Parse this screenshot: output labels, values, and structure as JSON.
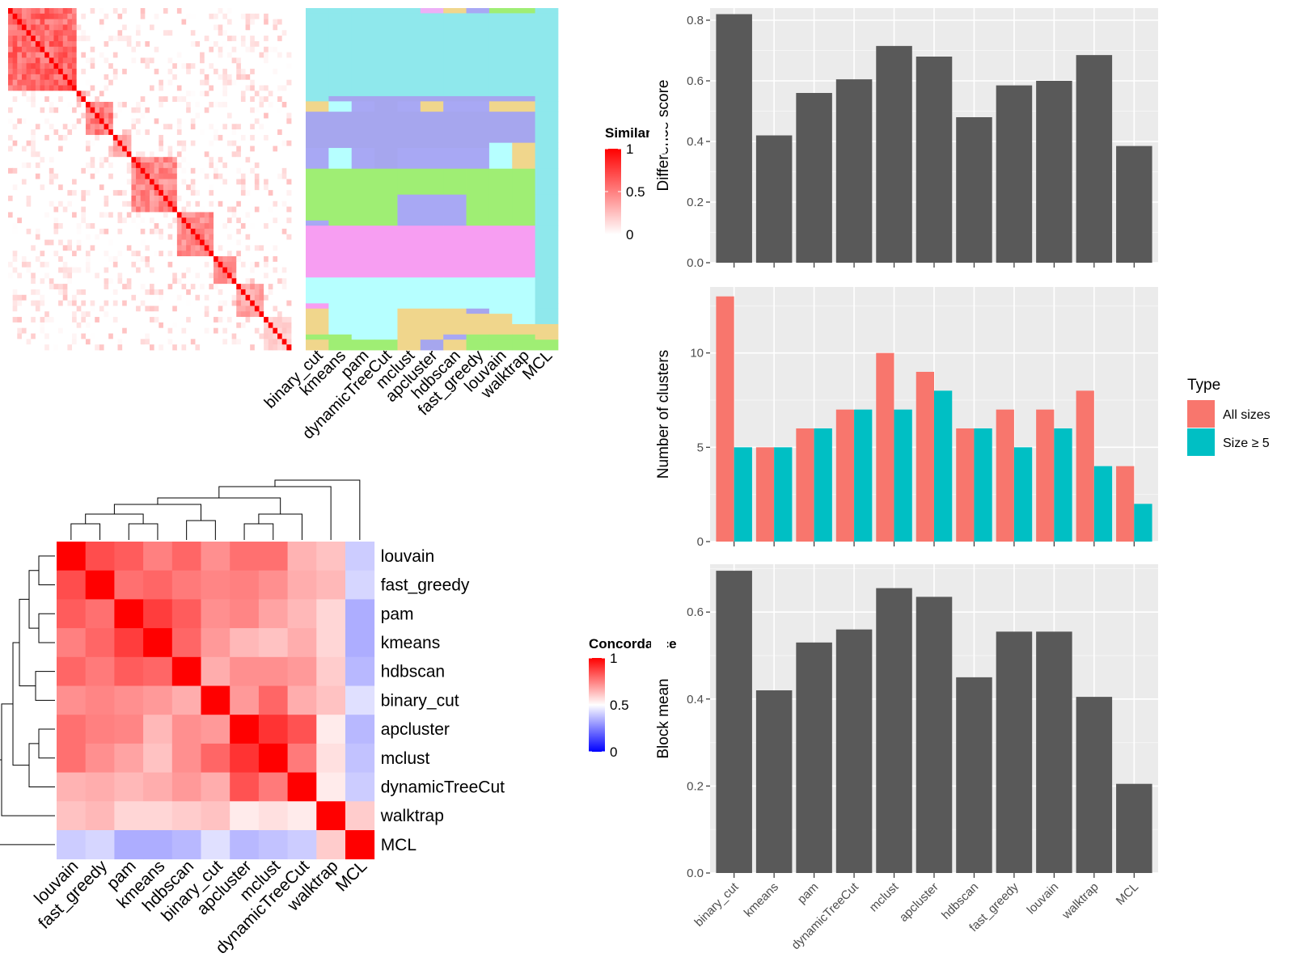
{
  "chart_data": [
    {
      "id": "similarity-heatmap",
      "type": "heatmap",
      "legend_title": "Similarity",
      "legend_ticks": [
        {
          "value": 1,
          "label": "1"
        },
        {
          "value": 0.5,
          "label": "0.5"
        },
        {
          "value": 0,
          "label": "0"
        }
      ],
      "scale_colors": [
        "#ffffff",
        "#ff0000"
      ],
      "n_terms": 62,
      "blocks": [
        {
          "start": 0,
          "end": 15,
          "within": 0.75
        },
        {
          "start": 15,
          "end": 17,
          "within": 0.6
        },
        {
          "start": 17,
          "end": 23,
          "within": 0.65
        },
        {
          "start": 23,
          "end": 27,
          "within": 0.55
        },
        {
          "start": 27,
          "end": 37,
          "within": 0.6
        },
        {
          "start": 37,
          "end": 45,
          "within": 0.6
        },
        {
          "start": 45,
          "end": 50,
          "within": 0.55
        },
        {
          "start": 50,
          "end": 56,
          "within": 0.45
        },
        {
          "start": 56,
          "end": 62,
          "within": 0.25
        }
      ]
    },
    {
      "id": "cluster-membership",
      "type": "heatmap",
      "methods": [
        "binary_cut",
        "kmeans",
        "pam",
        "dynamicTreeCut",
        "mclust",
        "apcluster",
        "hdbscan",
        "fast_greedy",
        "louvain",
        "walktrap",
        "MCL"
      ],
      "cluster_colors": [
        "#8fe8ec",
        "#f0d68c",
        "#a6a6ee",
        "#a8a8f4",
        "#9fee74",
        "#f79ef2",
        "#b6ffff",
        "#edaff6"
      ],
      "row_segments": [
        {
          "rows": 1,
          "clusters": [
            0,
            0,
            0,
            0,
            0,
            7,
            1,
            3,
            4,
            4,
            0
          ]
        },
        {
          "rows": 16,
          "clusters": [
            0,
            0,
            0,
            0,
            0,
            0,
            0,
            0,
            0,
            0,
            0
          ]
        },
        {
          "rows": 1,
          "clusters": [
            0,
            2,
            2,
            2,
            2,
            2,
            2,
            2,
            2,
            2,
            0
          ]
        },
        {
          "rows": 2,
          "clusters": [
            1,
            6,
            3,
            2,
            3,
            1,
            3,
            3,
            1,
            1,
            0
          ]
        },
        {
          "rows": 6,
          "clusters": [
            2,
            2,
            2,
            2,
            2,
            2,
            2,
            2,
            2,
            2,
            0
          ]
        },
        {
          "rows": 1,
          "clusters": [
            2,
            2,
            2,
            2,
            2,
            2,
            2,
            2,
            6,
            1,
            0
          ]
        },
        {
          "rows": 4,
          "clusters": [
            3,
            6,
            3,
            2,
            3,
            3,
            3,
            3,
            6,
            1,
            0
          ]
        },
        {
          "rows": 5,
          "clusters": [
            4,
            4,
            4,
            4,
            4,
            4,
            4,
            4,
            4,
            4,
            0
          ]
        },
        {
          "rows": 5,
          "clusters": [
            4,
            4,
            4,
            4,
            3,
            3,
            3,
            4,
            4,
            4,
            0
          ]
        },
        {
          "rows": 1,
          "clusters": [
            3,
            4,
            4,
            4,
            3,
            3,
            3,
            4,
            4,
            4,
            0
          ]
        },
        {
          "rows": 1,
          "clusters": [
            5,
            5,
            5,
            5,
            5,
            5,
            5,
            5,
            5,
            5,
            0
          ]
        },
        {
          "rows": 9,
          "clusters": [
            5,
            5,
            5,
            5,
            5,
            5,
            5,
            5,
            5,
            5,
            0
          ]
        },
        {
          "rows": 5,
          "clusters": [
            6,
            6,
            6,
            6,
            6,
            6,
            6,
            6,
            6,
            6,
            0
          ]
        },
        {
          "rows": 1,
          "clusters": [
            5,
            6,
            6,
            6,
            6,
            6,
            6,
            6,
            6,
            6,
            0
          ]
        },
        {
          "rows": 1,
          "clusters": [
            1,
            6,
            6,
            6,
            1,
            1,
            1,
            2,
            6,
            6,
            0
          ]
        },
        {
          "rows": 2,
          "clusters": [
            1,
            6,
            6,
            6,
            1,
            1,
            1,
            1,
            1,
            6,
            0
          ]
        },
        {
          "rows": 2,
          "clusters": [
            1,
            6,
            6,
            6,
            1,
            1,
            1,
            1,
            1,
            1,
            1
          ]
        },
        {
          "rows": 1,
          "clusters": [
            4,
            4,
            6,
            6,
            1,
            1,
            3,
            4,
            4,
            4,
            1
          ]
        },
        {
          "rows": 2,
          "clusters": [
            1,
            4,
            4,
            4,
            1,
            2,
            1,
            4,
            4,
            4,
            4
          ]
        }
      ]
    },
    {
      "id": "concordance-heatmap",
      "type": "heatmap",
      "legend_title": "Concordance",
      "legend_ticks": [
        {
          "value": 1,
          "label": "1"
        },
        {
          "value": 0.5,
          "label": "0.5"
        },
        {
          "value": 0,
          "label": "0"
        }
      ],
      "scale_colors": [
        "#0000ff",
        "#ffffff",
        "#ff0000"
      ],
      "labels": [
        "louvain",
        "fast_greedy",
        "pam",
        "kmeans",
        "hdbscan",
        "binary_cut",
        "apcluster",
        "mclust",
        "dynamicTreeCut",
        "walktrap",
        "MCL"
      ],
      "matrix": [
        [
          1.0,
          0.85,
          0.82,
          0.75,
          0.8,
          0.72,
          0.78,
          0.78,
          0.65,
          0.62,
          0.4
        ],
        [
          0.85,
          1.0,
          0.78,
          0.8,
          0.76,
          0.74,
          0.75,
          0.72,
          0.66,
          0.64,
          0.42
        ],
        [
          0.82,
          0.78,
          1.0,
          0.88,
          0.82,
          0.72,
          0.74,
          0.68,
          0.64,
          0.58,
          0.34
        ],
        [
          0.75,
          0.8,
          0.88,
          1.0,
          0.8,
          0.7,
          0.64,
          0.62,
          0.66,
          0.58,
          0.34
        ],
        [
          0.8,
          0.76,
          0.82,
          0.8,
          1.0,
          0.66,
          0.72,
          0.72,
          0.7,
          0.6,
          0.36
        ],
        [
          0.72,
          0.74,
          0.72,
          0.7,
          0.66,
          1.0,
          0.7,
          0.8,
          0.66,
          0.62,
          0.44
        ],
        [
          0.78,
          0.75,
          0.74,
          0.64,
          0.72,
          0.7,
          1.0,
          0.9,
          0.84,
          0.54,
          0.36
        ],
        [
          0.78,
          0.72,
          0.68,
          0.62,
          0.72,
          0.8,
          0.9,
          1.0,
          0.76,
          0.56,
          0.38
        ],
        [
          0.65,
          0.66,
          0.64,
          0.66,
          0.7,
          0.66,
          0.84,
          0.76,
          1.0,
          0.54,
          0.4
        ],
        [
          0.62,
          0.64,
          0.58,
          0.58,
          0.6,
          0.62,
          0.54,
          0.56,
          0.54,
          1.0,
          0.6
        ],
        [
          0.4,
          0.42,
          0.34,
          0.34,
          0.36,
          0.44,
          0.36,
          0.38,
          0.4,
          0.6,
          1.0
        ]
      ]
    },
    {
      "id": "difference-score",
      "type": "bar",
      "ylabel": "Difference score",
      "ylim": [
        0,
        0.84
      ],
      "yticks": [
        0.0,
        0.2,
        0.4,
        0.6,
        0.8
      ],
      "ytick_labels": [
        "0.0",
        "0.2",
        "0.4",
        "0.6",
        "0.8"
      ],
      "categories": [
        "binary_cut",
        "kmeans",
        "pam",
        "dynamicTreeCut",
        "mclust",
        "apcluster",
        "hdbscan",
        "fast_greedy",
        "louvain",
        "walktrap",
        "MCL"
      ],
      "values": [
        0.82,
        0.42,
        0.56,
        0.605,
        0.715,
        0.68,
        0.48,
        0.585,
        0.6,
        0.685,
        0.385
      ],
      "bar_color": "#595959"
    },
    {
      "id": "number-of-clusters",
      "type": "bar",
      "ylabel": "Number of clusters",
      "ylim": [
        0,
        13.5
      ],
      "yticks": [
        0,
        5,
        10
      ],
      "ytick_labels": [
        "0",
        "5",
        "10"
      ],
      "categories": [
        "binary_cut",
        "kmeans",
        "pam",
        "dynamicTreeCut",
        "mclust",
        "apcluster",
        "hdbscan",
        "fast_greedy",
        "louvain",
        "walktrap",
        "MCL"
      ],
      "series": [
        {
          "name": "All sizes",
          "color": "#f8766d",
          "values": [
            13,
            5,
            6,
            7,
            10,
            9,
            6,
            7,
            7,
            8,
            4
          ]
        },
        {
          "name": "Size ≥ 5",
          "color": "#00bfc4",
          "values": [
            5,
            5,
            6,
            7,
            7,
            8,
            6,
            5,
            6,
            4,
            2
          ]
        }
      ],
      "legend_title": "Type",
      "legend_position": "right"
    },
    {
      "id": "block-mean",
      "type": "bar",
      "ylabel": "Block mean",
      "ylim": [
        0,
        0.71
      ],
      "yticks": [
        0.0,
        0.2,
        0.4,
        0.6
      ],
      "ytick_labels": [
        "0.0",
        "0.2",
        "0.4",
        "0.6"
      ],
      "categories": [
        "binary_cut",
        "kmeans",
        "pam",
        "dynamicTreeCut",
        "mclust",
        "apcluster",
        "hdbscan",
        "fast_greedy",
        "louvain",
        "walktrap",
        "MCL"
      ],
      "values": [
        0.695,
        0.42,
        0.53,
        0.56,
        0.655,
        0.635,
        0.45,
        0.555,
        0.555,
        0.405,
        0.205
      ],
      "bar_color": "#595959"
    }
  ]
}
